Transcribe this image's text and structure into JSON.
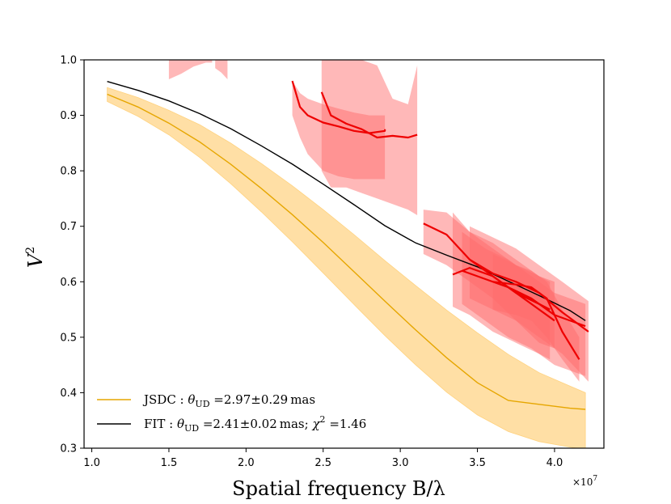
{
  "chart_data": {
    "type": "line",
    "title": "",
    "xlabel": "Spatial frequency B/λ",
    "ylabel": "V",
    "ylabel_exponent": "2",
    "x_multiplier": "×10",
    "x_multiplier_exponent": "7",
    "xlim": [
      0.95,
      4.32
    ],
    "ylim": [
      0.3,
      1.0
    ],
    "xticks": [
      1.0,
      1.5,
      2.0,
      2.5,
      3.0,
      3.5,
      4.0
    ],
    "xtick_labels": [
      "1.0",
      "1.5",
      "2.0",
      "2.5",
      "3.0",
      "3.5",
      "4.0"
    ],
    "yticks": [
      0.3,
      0.4,
      0.5,
      0.6,
      0.7,
      0.8,
      0.9,
      1.0
    ],
    "ytick_labels": [
      "0.3",
      "0.4",
      "0.5",
      "0.6",
      "0.7",
      "0.8",
      "0.9",
      "1.0"
    ],
    "grid": false,
    "legend_position": "lower-left",
    "models": [
      {
        "name": "JSDC",
        "legend": "JSDC : θUD =2.97±0.29 mas",
        "legend_parts": [
          "JSDC : ",
          "θ",
          "UD",
          " =2.97±0.29 mas"
        ],
        "color": "#e6a600",
        "band_color": "#ffd27f",
        "x": [
          1.1,
          1.3,
          1.5,
          1.7,
          1.9,
          2.1,
          2.3,
          2.5,
          2.7,
          2.9,
          3.1,
          3.3,
          3.5,
          3.7,
          3.9,
          4.1,
          4.2
        ],
        "y": [
          0.938,
          0.915,
          0.886,
          0.852,
          0.812,
          0.768,
          0.721,
          0.671,
          0.618,
          0.565,
          0.513,
          0.463,
          0.418,
          0.386,
          0.379,
          0.372,
          0.37
        ],
        "y_upper": [
          0.95,
          0.932,
          0.909,
          0.883,
          0.85,
          0.813,
          0.773,
          0.73,
          0.685,
          0.638,
          0.593,
          0.549,
          0.508,
          0.469,
          0.436,
          0.412,
          0.4
        ],
        "y_lower": [
          0.925,
          0.898,
          0.865,
          0.824,
          0.777,
          0.726,
          0.672,
          0.616,
          0.559,
          0.503,
          0.45,
          0.401,
          0.36,
          0.33,
          0.312,
          0.302,
          0.298
        ]
      },
      {
        "name": "FIT",
        "legend": "FIT : θUD =2.41±0.02 mas; χ2 =1.46",
        "legend_parts": [
          "FIT : ",
          "θ",
          "UD",
          " =2.41±0.02 mas; ",
          "χ",
          "2",
          " =1.46"
        ],
        "color": "#000000",
        "x": [
          1.1,
          1.3,
          1.5,
          1.7,
          1.9,
          2.1,
          2.3,
          2.5,
          2.7,
          2.9,
          3.1,
          3.3,
          3.5,
          3.7,
          3.9,
          4.1,
          4.2
        ],
        "y": [
          0.961,
          0.945,
          0.926,
          0.903,
          0.876,
          0.845,
          0.812,
          0.776,
          0.739,
          0.701,
          0.67,
          0.648,
          0.627,
          0.601,
          0.575,
          0.548,
          0.53
        ]
      }
    ],
    "observations": [
      {
        "x": [
          1.5,
          1.58,
          1.66,
          1.74,
          1.78
        ],
        "y_upper": [
          1.0,
          1.0,
          1.0,
          1.0,
          1.0
        ],
        "y_lower": [
          0.965,
          0.975,
          0.988,
          0.995,
          0.995
        ],
        "y": []
      },
      {
        "x": [
          1.8,
          1.84,
          1.88
        ],
        "y_upper": [
          1.0,
          1.0,
          1.0
        ],
        "y_lower": [
          0.985,
          0.977,
          0.965
        ],
        "y": []
      },
      {
        "x": [
          2.3,
          2.35,
          2.4,
          2.5,
          2.6,
          2.7,
          2.8,
          2.9,
          2.9
        ],
        "y": [
          0.962,
          0.915,
          0.9,
          0.887,
          0.88,
          0.872,
          0.868,
          0.872,
          0.875
        ],
        "y_upper": [
          0.962,
          0.94,
          0.93,
          0.92,
          0.912,
          0.905,
          0.9,
          0.9,
          0.9
        ],
        "y_lower": [
          0.9,
          0.86,
          0.83,
          0.8,
          0.79,
          0.785,
          0.785,
          0.785,
          0.785
        ]
      },
      {
        "x": [
          2.49,
          2.55,
          2.65,
          2.75,
          2.85,
          2.95,
          3.05,
          3.11
        ],
        "y": [
          0.942,
          0.9,
          0.885,
          0.875,
          0.86,
          0.863,
          0.86,
          0.865
        ],
        "y_upper": [
          1.0,
          1.0,
          1.0,
          1.0,
          0.99,
          0.93,
          0.92,
          0.99
        ],
        "y_lower": [
          0.8,
          0.77,
          0.77,
          0.76,
          0.75,
          0.74,
          0.73,
          0.72
        ]
      },
      {
        "x": [
          3.15,
          3.3,
          3.45,
          3.6,
          3.75,
          3.9,
          4.0
        ],
        "y": [
          0.705,
          0.685,
          0.64,
          0.61,
          0.58,
          0.55,
          0.53
        ],
        "y_upper": [
          0.73,
          0.725,
          0.69,
          0.66,
          0.63,
          0.61,
          0.6
        ],
        "y_lower": [
          0.65,
          0.63,
          0.6,
          0.57,
          0.53,
          0.49,
          0.48
        ]
      },
      {
        "x": [
          3.34,
          3.45,
          3.6,
          3.75,
          3.9,
          3.97
        ],
        "y": [
          0.613,
          0.625,
          0.61,
          0.58,
          0.56,
          0.55
        ],
        "y_upper": [
          0.725,
          0.69,
          0.67,
          0.64,
          0.61,
          0.6
        ],
        "y_lower": [
          0.555,
          0.54,
          0.51,
          0.49,
          0.47,
          0.46
        ]
      },
      {
        "x": [
          3.4,
          3.55,
          3.7,
          3.85,
          4.0,
          4.2
        ],
        "y": [
          0.62,
          0.605,
          0.59,
          0.57,
          0.54,
          0.52
        ],
        "y_upper": [
          0.69,
          0.66,
          0.64,
          0.61,
          0.58,
          0.56
        ],
        "y_lower": [
          0.56,
          0.53,
          0.5,
          0.48,
          0.45,
          0.43
        ]
      },
      {
        "x": [
          3.45,
          3.6,
          3.75,
          3.9,
          4.05,
          4.22
        ],
        "y": [
          0.64,
          0.615,
          0.6,
          0.58,
          0.545,
          0.51
        ],
        "y_upper": [
          0.7,
          0.68,
          0.66,
          0.63,
          0.6,
          0.565
        ],
        "y_lower": [
          0.57,
          0.55,
          0.53,
          0.5,
          0.47,
          0.42
        ]
      },
      {
        "x": [
          3.6,
          3.75,
          3.85,
          3.95,
          4.05,
          4.16
        ],
        "y": [
          0.6,
          0.595,
          0.59,
          0.57,
          0.51,
          0.46
        ],
        "y_upper": [
          0.65,
          0.63,
          0.62,
          0.6,
          0.55,
          0.5
        ],
        "y_lower": [
          0.55,
          0.54,
          0.53,
          0.5,
          0.46,
          0.42
        ]
      }
    ],
    "observation_style": {
      "line_color": "#ee0000",
      "band_color": "#ff6b6b",
      "band_opacity": 0.48
    }
  }
}
